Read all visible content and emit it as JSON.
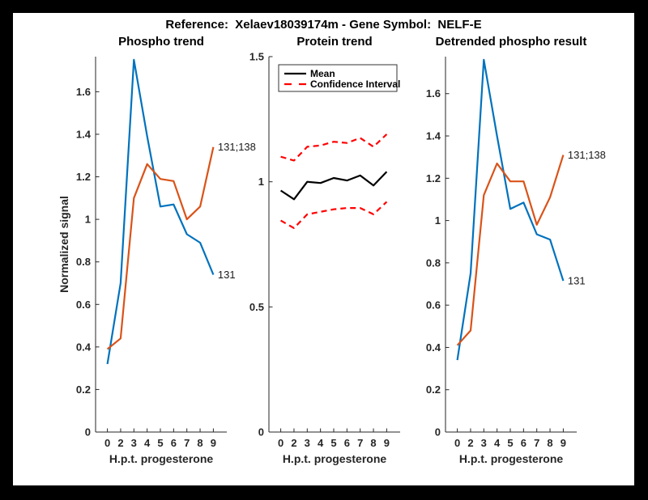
{
  "window": {
    "background_color": "#000000",
    "canvas_color": "#ffffff",
    "axis_color": "#262626",
    "accent_blue": "#0072BD",
    "accent_orange": "#D95319",
    "accent_red": "#FF0000"
  },
  "header": {
    "title": "Reference:  Xelaev18039174m - Gene Symbol:  NELF-E"
  },
  "chart_data": [
    {
      "type": "line",
      "title": "Phospho trend",
      "xlabel": "H.p.t. progesterone",
      "ylabel": "Normalized signal",
      "categories": [
        "0",
        "2",
        "3",
        "4",
        "5",
        "6",
        "7",
        "8",
        "9"
      ],
      "ylim": [
        0,
        1.765
      ],
      "ytick_values": [
        0,
        0.2,
        0.4,
        0.6,
        0.8,
        1,
        1.2,
        1.4,
        1.6
      ],
      "ytick_labels": [
        "0",
        "0.2",
        "0.4",
        "0.6",
        "0.8",
        "1",
        "1.2",
        "1.4",
        "1.6"
      ],
      "grid": false,
      "legend": null,
      "series": [
        {
          "name": "131",
          "color": "#0072BD",
          "dashed": false,
          "end_label": "131",
          "values": [
            0.32,
            0.7,
            1.75,
            1.39,
            1.06,
            1.07,
            0.93,
            0.89,
            0.74
          ]
        },
        {
          "name": "131;138",
          "color": "#D95319",
          "dashed": false,
          "end_label": "131;138",
          "values": [
            0.39,
            0.44,
            1.1,
            1.26,
            1.19,
            1.18,
            1.0,
            1.06,
            1.34
          ]
        }
      ]
    },
    {
      "type": "line",
      "title": "Protein trend",
      "xlabel": "H.p.t. progesterone",
      "ylabel": "",
      "categories": [
        "0",
        "2",
        "3",
        "4",
        "5",
        "6",
        "7",
        "8",
        "9"
      ],
      "ylim": [
        0,
        1.5
      ],
      "ytick_values": [
        0,
        0.5,
        1,
        1.5
      ],
      "ytick_labels": [
        "0",
        "0.5",
        "1",
        "1.5"
      ],
      "grid": false,
      "legend": {
        "position": "top-left",
        "entries": [
          {
            "label": "Mean",
            "color": "#000000",
            "dashed": false
          },
          {
            "label": "Confidence Interval",
            "color": "#FF0000",
            "dashed": true
          }
        ]
      },
      "series": [
        {
          "name": "Mean",
          "color": "#000000",
          "dashed": false,
          "end_label": null,
          "values": [
            0.965,
            0.93,
            1.0,
            0.995,
            1.015,
            1.005,
            1.025,
            0.985,
            1.04
          ]
        },
        {
          "name": "Confidence Interval upper",
          "color": "#FF0000",
          "dashed": true,
          "end_label": null,
          "values": [
            1.1,
            1.085,
            1.14,
            1.145,
            1.16,
            1.155,
            1.175,
            1.14,
            1.19
          ]
        },
        {
          "name": "Confidence Interval lower",
          "color": "#FF0000",
          "dashed": true,
          "end_label": null,
          "values": [
            0.845,
            0.815,
            0.87,
            0.88,
            0.89,
            0.895,
            0.895,
            0.87,
            0.92
          ]
        }
      ]
    },
    {
      "type": "line",
      "title": "Detrended phospho result",
      "xlabel": "H.p.t. progesterone",
      "ylabel": "",
      "categories": [
        "0",
        "2",
        "3",
        "4",
        "5",
        "6",
        "7",
        "8",
        "9"
      ],
      "ylim": [
        0,
        1.775
      ],
      "ytick_values": [
        0,
        0.2,
        0.4,
        0.6,
        0.8,
        1,
        1.2,
        1.4,
        1.6
      ],
      "ytick_labels": [
        "0",
        "0.2",
        "0.4",
        "0.6",
        "0.8",
        "1",
        "1.2",
        "1.4",
        "1.6"
      ],
      "grid": false,
      "legend": null,
      "series": [
        {
          "name": "131",
          "color": "#0072BD",
          "dashed": false,
          "end_label": "131",
          "values": [
            0.34,
            0.75,
            1.76,
            1.4,
            1.055,
            1.085,
            0.935,
            0.91,
            0.715
          ]
        },
        {
          "name": "131;138",
          "color": "#D95319",
          "dashed": false,
          "end_label": "131;138",
          "values": [
            0.41,
            0.48,
            1.12,
            1.27,
            1.185,
            1.185,
            0.98,
            1.11,
            1.31
          ]
        }
      ]
    }
  ]
}
